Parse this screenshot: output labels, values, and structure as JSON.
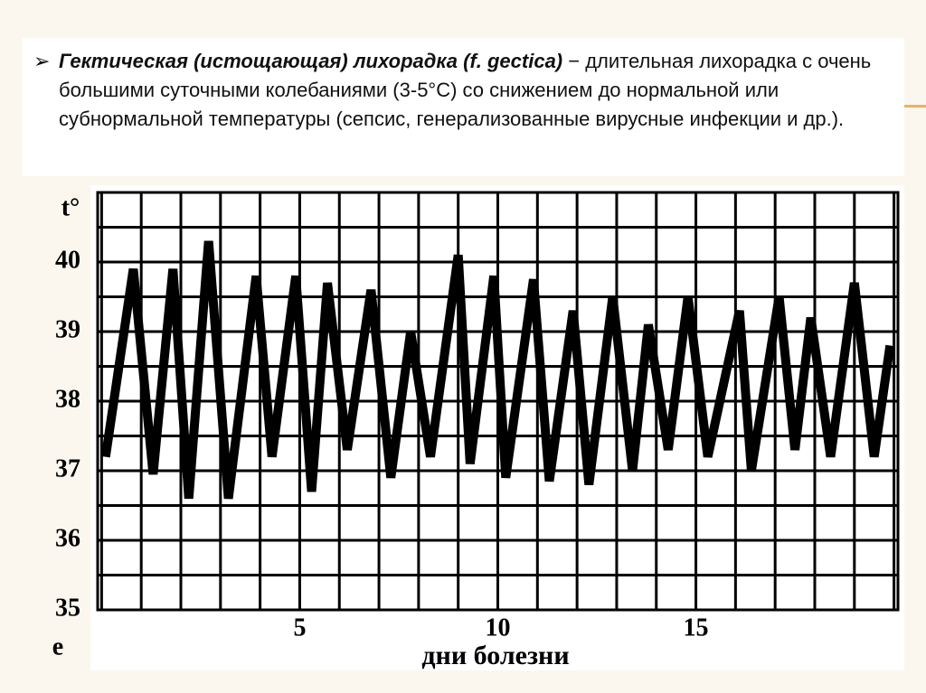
{
  "slide": {
    "bullet": "➢",
    "term": "Гектическая (истощающая) лихорадка (f. gectica)",
    "text": " − длительная лихорадка с очень большими суточными колебаниями (3-5°С) со снижением до нормальной или субнормальной температуры (сепсис, генерализованные вирусные инфекции и др.)."
  },
  "chart_data": {
    "type": "line",
    "y_label": "t°",
    "x_label": "дни болезни",
    "corner_label": "e",
    "xlim": [
      -0.1,
      20.1
    ],
    "ylim": [
      35,
      41
    ],
    "xticks": [
      5,
      10,
      15
    ],
    "yticks": [
      35,
      36,
      37,
      38,
      39,
      40
    ],
    "xgrid": [
      0,
      1,
      2,
      3,
      4,
      5,
      6,
      7,
      8,
      9,
      10,
      11,
      12,
      13,
      14,
      15,
      16,
      17,
      18,
      19,
      20
    ],
    "ygrid": [
      35,
      35.5,
      36,
      36.5,
      37,
      37.5,
      38,
      38.5,
      39,
      39.5,
      40,
      40.5,
      41
    ],
    "series": [
      {
        "color": "#000000",
        "x": [
          0.1,
          0.8,
          1.3,
          1.8,
          2.2,
          2.7,
          3.2,
          3.9,
          4.3,
          4.9,
          5.3,
          5.7,
          6.2,
          6.8,
          7.3,
          7.8,
          8.3,
          9.0,
          9.3,
          9.9,
          10.2,
          10.9,
          11.3,
          11.9,
          12.3,
          12.9,
          13.4,
          13.8,
          14.3,
          14.8,
          15.3,
          16.1,
          16.4,
          17.1,
          17.5,
          17.9,
          18.4,
          19.0,
          19.5,
          19.9
        ],
        "values": [
          37.2,
          39.9,
          36.95,
          39.9,
          36.6,
          40.3,
          36.6,
          39.8,
          37.2,
          39.8,
          36.7,
          39.7,
          37.3,
          39.6,
          36.9,
          39.0,
          37.2,
          40.1,
          37.1,
          39.8,
          36.9,
          39.75,
          36.85,
          39.3,
          36.8,
          39.5,
          37.0,
          39.1,
          37.3,
          39.5,
          37.2,
          39.3,
          37.0,
          39.5,
          37.3,
          39.2,
          37.2,
          39.7,
          37.2,
          38.8
        ]
      }
    ]
  }
}
